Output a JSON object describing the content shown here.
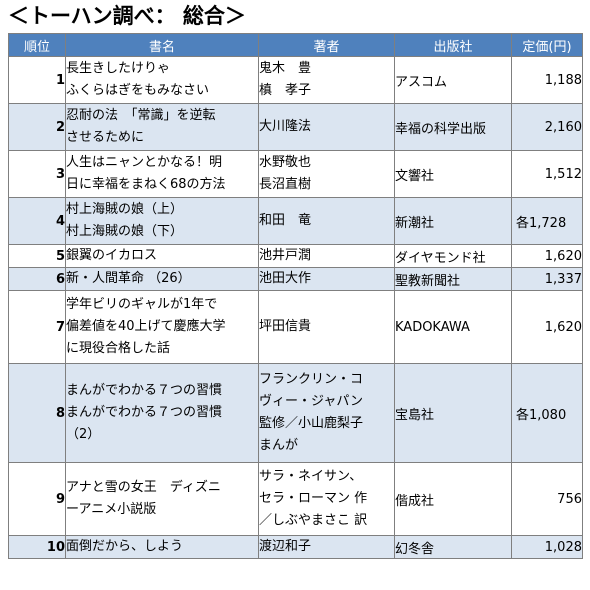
{
  "page_title": "＜トーハン調べ： 総合＞",
  "headers": {
    "rank": "順位",
    "title": "書名",
    "author": "著者",
    "publisher": "出版社",
    "price": "定価(円)"
  },
  "rows": [
    {
      "rank": "1",
      "title": [
        "長生きしたけりゃ",
        "ふくらはぎをもみなさい"
      ],
      "author": [
        "鬼木　豊",
        "槙　孝子"
      ],
      "publisher": "アスコム",
      "price": "1,188"
    },
    {
      "rank": "2",
      "title": [
        "忍耐の法　「常識」を逆転",
        "させるために"
      ],
      "author": [
        "大川隆法"
      ],
      "publisher": "幸福の科学出版",
      "price": "2,160"
    },
    {
      "rank": "3",
      "title": [
        "人生はニャンとかなる！明",
        "日に幸福をまねく68の方法"
      ],
      "author": [
        "水野敬也",
        "長沼直樹"
      ],
      "publisher": "文響社",
      "price": "1,512"
    },
    {
      "rank": "4",
      "title": [
        "村上海賊の娘（上）",
        "村上海賊の娘（下）"
      ],
      "author": [
        "和田　竜"
      ],
      "publisher": "新潮社",
      "price": "各1,728"
    },
    {
      "rank": "5",
      "title": [
        "銀翼のイカロス"
      ],
      "author": [
        "池井戸潤"
      ],
      "publisher": "ダイヤモンド社",
      "price": "1,620"
    },
    {
      "rank": "6",
      "title": [
        "新・人間革命 （26）"
      ],
      "author": [
        "池田大作"
      ],
      "publisher": "聖教新聞社",
      "price": "1,337"
    },
    {
      "rank": "7",
      "title": [
        "学年ビリのギャルが1年で",
        "偏差値を40上げて慶應大学",
        "に現役合格した話"
      ],
      "author": [
        "坪田信貴"
      ],
      "publisher": "KADOKAWA",
      "price": "1,620"
    },
    {
      "rank": "8",
      "title": [
        "まんがでわかる７つの習慣",
        "まんがでわかる７つの習慣",
        "（2）"
      ],
      "author": [
        "フランクリン・コ",
        "ヴィー・ジャパン",
        "監修／小山鹿梨子",
        "まんが"
      ],
      "publisher": "宝島社",
      "price": "各1,080"
    },
    {
      "rank": "9",
      "title": [
        "アナと雪の女王　ディズニ",
        "ーアニメ小説版"
      ],
      "author": [
        "サラ・ネイサン、",
        "セラ・ローマン 作",
        "／しぶやまさこ 訳"
      ],
      "publisher": "偕成社",
      "price": "756"
    },
    {
      "rank": "10",
      "title": [
        "面倒だから、しよう"
      ],
      "author": [
        "渡辺和子"
      ],
      "publisher": "幻冬舎",
      "price": "1,028"
    }
  ],
  "colors": {
    "header_bg": "#4f81bd",
    "alt_row_bg": "#dbe5f1",
    "border": "#7f7f7f"
  }
}
